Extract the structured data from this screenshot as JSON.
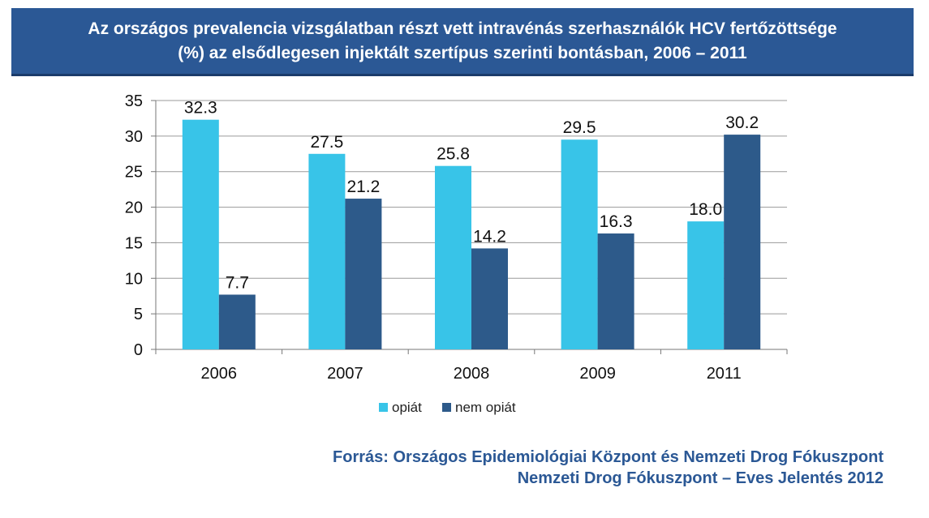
{
  "title": {
    "line1": "Az országos prevalencia vizsgálatban részt vett intravénás szerhasználók HCV fertőzöttsége",
    "line2": "(%) az elsődlegesen injektált szertípus szerinti bontásban, 2006 – 2011"
  },
  "source": {
    "line1": "Forrás: Országos Epidemiológiai Központ és Nemzeti Drog Fókuszpont",
    "line2": "Nemzeti Drog Fókuszpont – Eves Jelentés 2012"
  },
  "colors": {
    "opiat": "#38c4e8",
    "nem_opiat": "#2d5a8a",
    "title_bg": "#2b5895",
    "source_text": "#2b5895"
  },
  "chart_data": {
    "type": "bar",
    "categories": [
      "2006",
      "2007",
      "2008",
      "2009",
      "2011"
    ],
    "series": [
      {
        "name": "opiát",
        "values": [
          32.3,
          27.5,
          25.8,
          29.5,
          18.0
        ],
        "labels": [
          "32.3",
          "27.5",
          "25.8",
          "29.5",
          "18.0"
        ]
      },
      {
        "name": "nem opiát",
        "values": [
          7.7,
          21.2,
          14.2,
          16.3,
          30.2
        ],
        "labels": [
          "7.7",
          "21.2",
          "14.2",
          "16.3",
          "30.2"
        ]
      }
    ],
    "ylim": [
      0,
      35
    ],
    "yticks": [
      0,
      5,
      10,
      15,
      20,
      25,
      30,
      35
    ],
    "grid": true,
    "legend": "bottom"
  }
}
